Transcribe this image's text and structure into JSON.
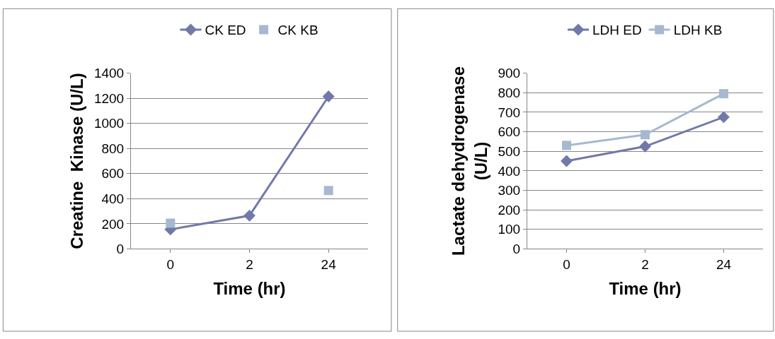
{
  "chart_data": [
    {
      "type": "line",
      "categories": [
        "0",
        "2",
        "24"
      ],
      "xlabel": "Time (hr)",
      "ylabel": "Creatine  Kinase (U/L)",
      "ylim": [
        0,
        1400
      ],
      "yticks": [
        0,
        200,
        400,
        600,
        800,
        1000,
        1200,
        1400
      ],
      "grid": "y",
      "legend": "top",
      "series": [
        {
          "name": "CK ED",
          "color": "#7179a9",
          "marker": "diamond",
          "values": [
            155,
            265,
            1215
          ]
        },
        {
          "name": "CK KB",
          "type": "scatter",
          "color": "#a6b9d1",
          "marker": "square",
          "values": [
            205,
            null,
            465
          ]
        }
      ]
    },
    {
      "type": "line",
      "categories": [
        "0",
        "2",
        "24"
      ],
      "xlabel": "Time (hr)",
      "ylabel": "Lactate dehydrogenase\n(U/L)",
      "ylim": [
        0,
        900
      ],
      "yticks": [
        0,
        100,
        200,
        300,
        400,
        500,
        600,
        700,
        800,
        900
      ],
      "grid": "y",
      "legend": "top",
      "series": [
        {
          "name": "LDH ED",
          "color": "#7179a9",
          "marker": "diamond",
          "values": [
            450,
            525,
            675
          ]
        },
        {
          "name": "LDH KB",
          "color": "#a6b9d1",
          "marker": "square",
          "values": [
            530,
            585,
            795
          ]
        }
      ]
    }
  ]
}
